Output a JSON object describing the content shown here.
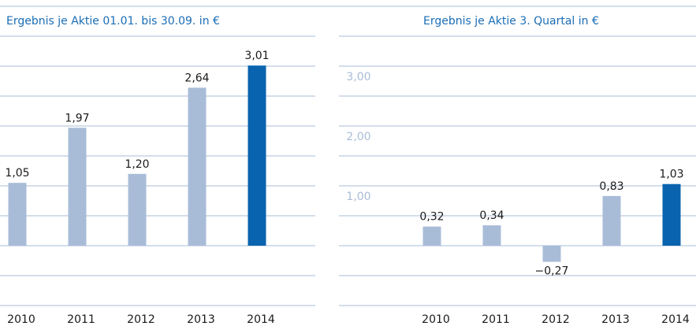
{
  "chart_data": [
    {
      "type": "bar",
      "title": "Ergebnis je Aktie 01.01. bis 30.09. in €",
      "categories": [
        "2010",
        "2011",
        "2012",
        "2013",
        "2014"
      ],
      "values": [
        1.05,
        1.97,
        1.2,
        2.64,
        3.01
      ],
      "value_labels": [
        "1,05",
        "1,97",
        "1,20",
        "2,64",
        "3,01"
      ],
      "colors": [
        "#a9bcd7",
        "#a9bcd7",
        "#a9bcd7",
        "#a9bcd7",
        "#0a63ae"
      ],
      "ylim": [
        -1,
        4
      ],
      "grid_lines": [
        -1,
        -0.5,
        0,
        0.5,
        1,
        1.5,
        2,
        2.5,
        3,
        3.5,
        4
      ]
    },
    {
      "type": "bar",
      "title": "Ergebnis je Aktie 3. Quartal in €",
      "categories": [
        "2010",
        "2011",
        "2012",
        "2013",
        "2014"
      ],
      "values": [
        0.32,
        0.34,
        -0.27,
        0.83,
        1.03
      ],
      "value_labels": [
        "0,32",
        "0,34",
        "−0,27",
        "0,83",
        "1,03"
      ],
      "colors": [
        "#a9bcd7",
        "#a9bcd7",
        "#a9bcd7",
        "#a9bcd7",
        "#0a63ae"
      ],
      "ylim": [
        -1,
        4
      ],
      "yticks": [
        {
          "value": 1,
          "label": "1,00"
        },
        {
          "value": 2,
          "label": "2,00"
        },
        {
          "value": 3,
          "label": "3,00"
        }
      ],
      "grid_lines": [
        -1,
        -0.5,
        0,
        0.5,
        1,
        1.5,
        2,
        2.5,
        3,
        3.5,
        4
      ]
    }
  ]
}
